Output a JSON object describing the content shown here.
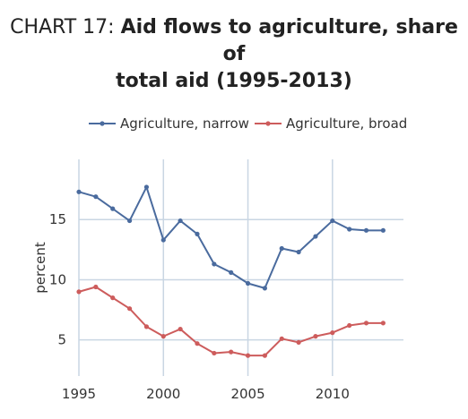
{
  "title": {
    "prefix": "CHART 17:",
    "line1_bold": "Aid flows to agriculture, share of",
    "line2_bold": "total aid (1995-2013)"
  },
  "colors": {
    "narrow": "#4a6b9e",
    "broad": "#cd5c5c",
    "grid": "#c9d6e3",
    "text": "#333333"
  },
  "chart_data": {
    "type": "line",
    "ylabel": "percent",
    "xlim": [
      1995,
      2014.2
    ],
    "ylim": [
      2,
      20
    ],
    "x_ticks": [
      "1995",
      "2000",
      "2005",
      "2010"
    ],
    "y_ticks": [
      "5",
      "10",
      "15"
    ],
    "grid": true,
    "legend_position": "top",
    "series": [
      {
        "name": "Agriculture, narrow",
        "color": "#4a6b9e",
        "x": [
          1995,
          1996,
          1997,
          1998,
          1999,
          2000,
          2001,
          2002,
          2003,
          2004,
          2005,
          2006,
          2007,
          2008,
          2009,
          2010,
          2011,
          2012,
          2013
        ],
        "y": [
          17.3,
          16.9,
          15.9,
          14.9,
          17.7,
          13.3,
          14.9,
          13.8,
          11.3,
          10.6,
          9.7,
          9.3,
          12.6,
          12.3,
          13.6,
          14.9,
          14.2,
          14.1,
          14.1
        ]
      },
      {
        "name": "Agriculture, broad",
        "color": "#cd5c5c",
        "x": [
          1995,
          1996,
          1997,
          1998,
          1999,
          2000,
          2001,
          2002,
          2003,
          2004,
          2005,
          2006,
          2007,
          2008,
          2009,
          2010,
          2011,
          2012,
          2013
        ],
        "y": [
          9.0,
          9.4,
          8.5,
          7.6,
          6.1,
          5.3,
          5.9,
          4.7,
          3.9,
          4.0,
          3.7,
          3.7,
          5.1,
          4.8,
          5.3,
          5.6,
          6.2,
          6.4,
          6.4
        ]
      }
    ]
  }
}
